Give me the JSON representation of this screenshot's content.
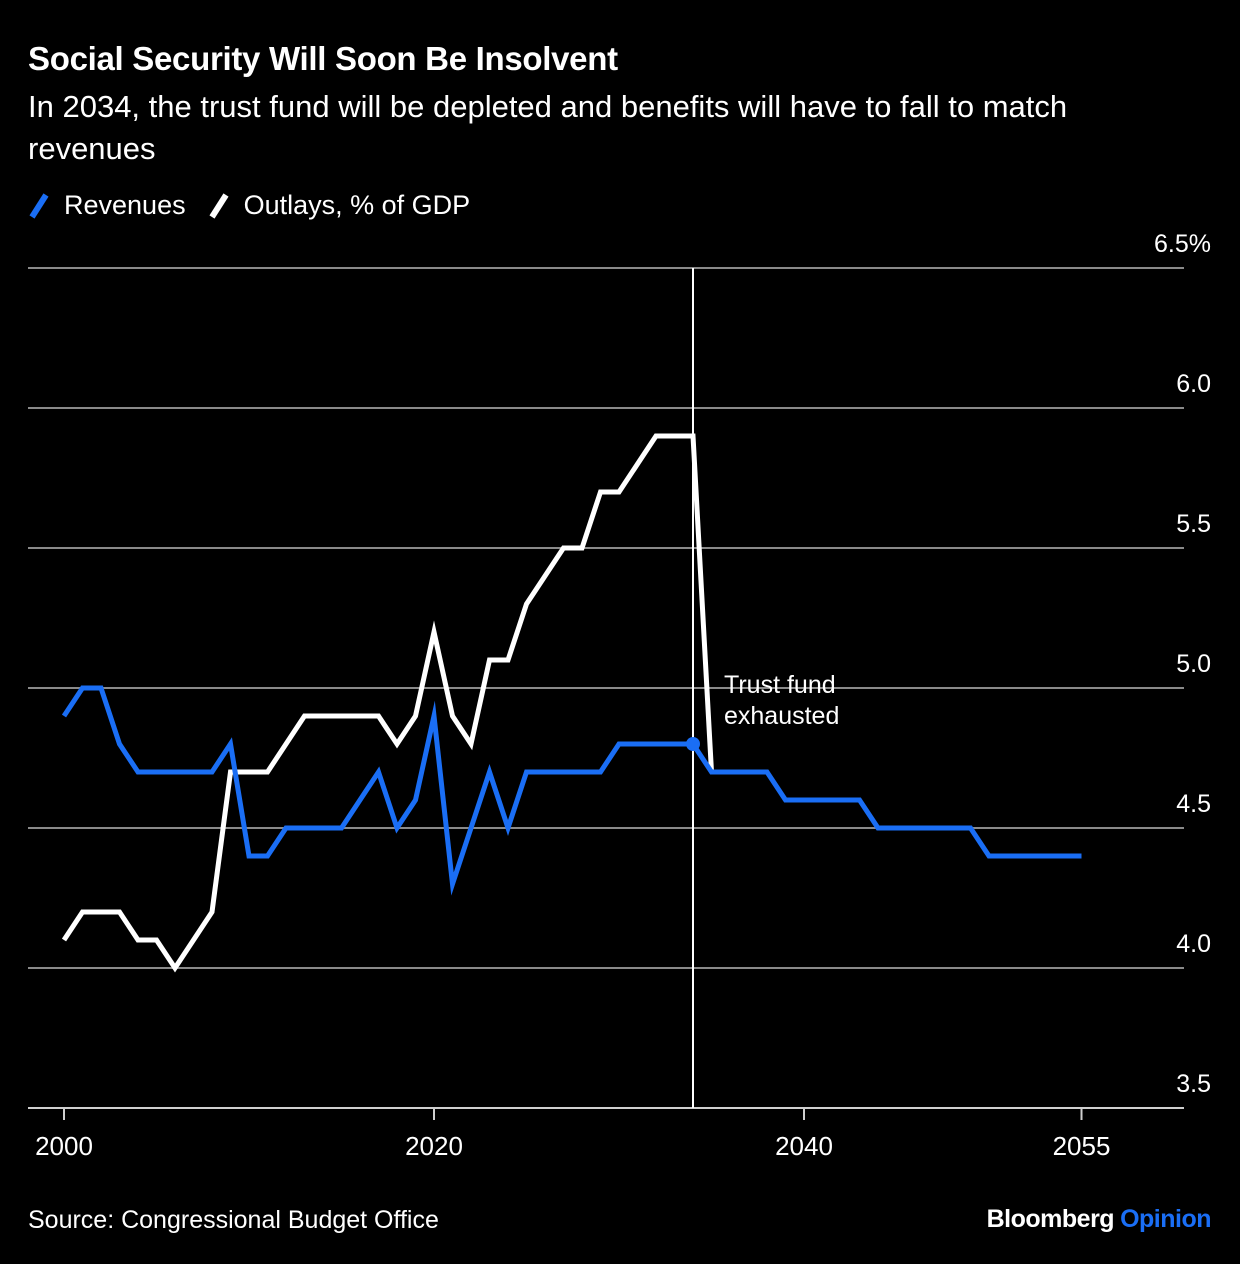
{
  "colors": {
    "background": "#000000",
    "revenues": "#1a6ef5",
    "outlays": "#ffffff",
    "grid": "#8a8a8a"
  },
  "source": "Source: Congressional Budget Office",
  "brand": {
    "name": "Bloomberg",
    "accent": "Opinion"
  },
  "chart_data": {
    "type": "line",
    "title": "Social Security Will Soon Be Insolvent",
    "subtitle": "In 2034, the trust fund will be depleted and benefits will have to fall to match revenues",
    "legend": [
      "Revenues",
      "Outlays, % of GDP"
    ],
    "legend_position": "top-left",
    "xlabel": "",
    "ylabel": "",
    "xlim": [
      1998,
      2061
    ],
    "ylim": [
      3.5,
      6.5
    ],
    "x_ticks": [
      2000,
      2020,
      2040,
      2055
    ],
    "y_ticks": [
      3.5,
      4.0,
      4.5,
      5.0,
      5.5,
      6.0,
      6.5
    ],
    "y_tick_labels": [
      "3.5",
      "4.0",
      "4.5",
      "5.0",
      "5.5",
      "6.0",
      "6.5%"
    ],
    "y_axis_side": "right",
    "grid": true,
    "series": [
      {
        "name": "Revenues",
        "x": [
          2000,
          2001,
          2002,
          2003,
          2004,
          2005,
          2006,
          2007,
          2008,
          2009,
          2010,
          2011,
          2012,
          2013,
          2014,
          2015,
          2016,
          2017,
          2018,
          2019,
          2020,
          2021,
          2022,
          2023,
          2024,
          2025,
          2026,
          2027,
          2028,
          2029,
          2030,
          2031,
          2032,
          2033,
          2034,
          2035,
          2036,
          2037,
          2038,
          2039,
          2040,
          2041,
          2042,
          2043,
          2044,
          2045,
          2046,
          2047,
          2048,
          2049,
          2050,
          2051,
          2052,
          2053,
          2054,
          2055
        ],
        "values": [
          4.9,
          5.0,
          5.0,
          4.8,
          4.7,
          4.7,
          4.7,
          4.7,
          4.7,
          4.8,
          4.4,
          4.4,
          4.5,
          4.5,
          4.5,
          4.5,
          4.6,
          4.7,
          4.5,
          4.6,
          4.9,
          4.3,
          4.5,
          4.7,
          4.5,
          4.7,
          4.7,
          4.7,
          4.7,
          4.7,
          4.8,
          4.8,
          4.8,
          4.8,
          4.8,
          4.7,
          4.7,
          4.7,
          4.7,
          4.6,
          4.6,
          4.6,
          4.6,
          4.6,
          4.5,
          4.5,
          4.5,
          4.5,
          4.5,
          4.5,
          4.4,
          4.4,
          4.4,
          4.4,
          4.4,
          4.4
        ]
      },
      {
        "name": "Outlays, % of GDP",
        "x": [
          2000,
          2001,
          2002,
          2003,
          2004,
          2005,
          2006,
          2007,
          2008,
          2009,
          2010,
          2011,
          2012,
          2013,
          2014,
          2015,
          2016,
          2017,
          2018,
          2019,
          2020,
          2021,
          2022,
          2023,
          2024,
          2025,
          2026,
          2027,
          2028,
          2029,
          2030,
          2031,
          2032,
          2033,
          2034,
          2035
        ],
        "values": [
          4.1,
          4.2,
          4.2,
          4.2,
          4.1,
          4.1,
          4.0,
          4.1,
          4.2,
          4.7,
          4.7,
          4.7,
          4.8,
          4.9,
          4.9,
          4.9,
          4.9,
          4.9,
          4.8,
          4.9,
          5.2,
          4.9,
          4.8,
          5.1,
          5.1,
          5.3,
          5.4,
          5.5,
          5.5,
          5.7,
          5.7,
          5.8,
          5.9,
          5.9,
          5.9,
          4.7
        ]
      }
    ],
    "annotations": [
      {
        "x": 2034,
        "y": 4.8,
        "text": "Trust fund exhausted",
        "lines": [
          "Trust fund",
          "exhausted"
        ],
        "marker": "vertical-line",
        "point_series": "Revenues"
      }
    ]
  }
}
